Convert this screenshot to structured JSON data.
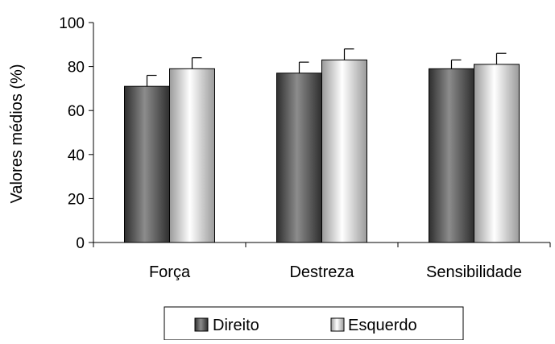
{
  "chart_data": {
    "type": "bar",
    "ylabel": "Valores médios (%)",
    "ylim": [
      0,
      100
    ],
    "yticks": [
      0,
      20,
      40,
      60,
      80,
      100
    ],
    "categories": [
      "Força",
      "Destreza",
      "Sensibilidade"
    ],
    "series": [
      {
        "name": "Direito",
        "values": [
          71,
          77,
          79
        ],
        "errors": [
          5,
          5,
          4
        ],
        "style": "dark-gray-gradient"
      },
      {
        "name": "Esquerdo",
        "values": [
          79,
          83,
          81
        ],
        "errors": [
          5,
          5,
          5
        ],
        "style": "light-cylinder-gradient"
      }
    ],
    "grid": false,
    "legend_position": "bottom"
  },
  "colors": {
    "direito_dark": "#3a3a3a",
    "direito_light": "#8a8a8a",
    "esquerdo_edge": "#9a9a9a",
    "esquerdo_center": "#ffffff"
  }
}
